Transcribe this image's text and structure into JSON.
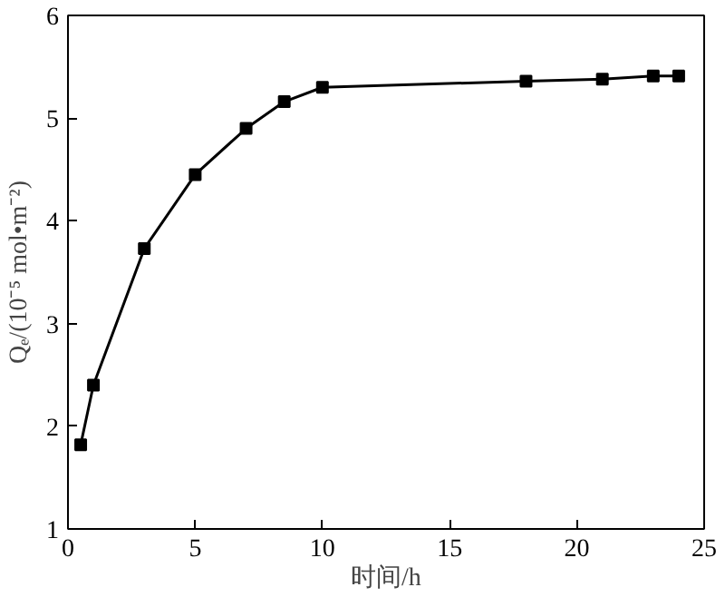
{
  "chart_data": {
    "type": "line",
    "xlabel": "时间/h",
    "ylabel": "Qₑ/(10⁻⁵ mol•m⁻²)",
    "x": [
      0.5,
      1,
      3,
      5,
      7,
      8.5,
      10,
      18,
      21,
      23,
      24
    ],
    "series": [
      {
        "color": "#000000",
        "values": [
          1.82,
          2.4,
          3.73,
          4.45,
          4.9,
          5.16,
          5.3,
          5.36,
          5.38,
          5.41,
          5.41
        ]
      }
    ],
    "xlim": [
      0,
      25
    ],
    "ylim": [
      1,
      6
    ],
    "xticks": [
      0,
      5,
      10,
      15,
      20,
      25
    ],
    "yticks": [
      1,
      2,
      3,
      4,
      5,
      6
    ],
    "marker": "square",
    "line_style": "solid",
    "grid": false
  }
}
